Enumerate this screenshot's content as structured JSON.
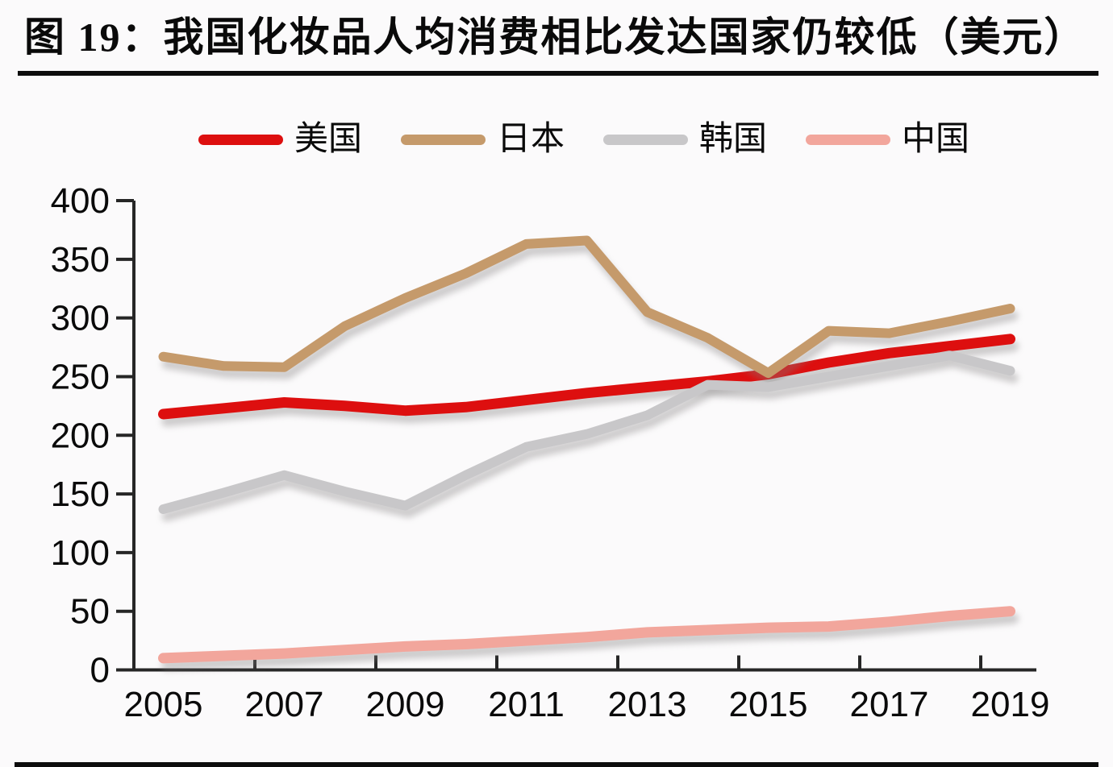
{
  "title": "图 19：我国化妆品人均消费相比发达国家仍较低（美元）",
  "chart_data": {
    "type": "line",
    "title": "图 19：我国化妆品人均消费相比发达国家仍较低（美元）",
    "unit": "美元 (USD)",
    "x": [
      2005,
      2006,
      2007,
      2008,
      2009,
      2010,
      2011,
      2012,
      2013,
      2014,
      2015,
      2016,
      2017,
      2018,
      2019
    ],
    "x_tick_labels": [
      "2005",
      "2007",
      "2009",
      "2011",
      "2013",
      "2015",
      "2017",
      "2019"
    ],
    "y_ticks": [
      0,
      50,
      100,
      150,
      200,
      250,
      300,
      350,
      400
    ],
    "ylim": [
      0,
      400
    ],
    "grid": false,
    "legend_position": "top",
    "series": [
      {
        "key": "usa",
        "name": "美国",
        "color": "#dd0f0f",
        "values": [
          218,
          223,
          228,
          225,
          221,
          224,
          230,
          236,
          241,
          246,
          252,
          262,
          270,
          276,
          282
        ]
      },
      {
        "key": "japan",
        "name": "日本",
        "color": "#c59a6b",
        "values": [
          267,
          259,
          258,
          293,
          317,
          338,
          363,
          366,
          305,
          283,
          253,
          289,
          287,
          297,
          308
        ]
      },
      {
        "key": "korea",
        "name": "韩国",
        "color": "#c8c7c9",
        "values": [
          137,
          151,
          166,
          152,
          140,
          166,
          190,
          201,
          217,
          243,
          241,
          250,
          259,
          268,
          255
        ]
      },
      {
        "key": "china",
        "name": "中国",
        "color": "#f2a69c",
        "values": [
          10,
          12,
          14,
          17,
          20,
          22,
          25,
          28,
          32,
          34,
          36,
          37,
          41,
          46,
          50
        ]
      }
    ]
  },
  "colors": {
    "background": "#fbfafb",
    "axis": "#262626",
    "text": "#0a0a0a",
    "title_rule": "#0d0d0d"
  }
}
